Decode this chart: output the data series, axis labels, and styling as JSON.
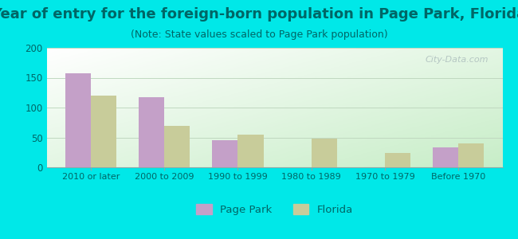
{
  "title": "Year of entry for the foreign-born population in Page Park, Florida",
  "subtitle": "(Note: State values scaled to Page Park population)",
  "categories": [
    "2010 or later",
    "2000 to 2009",
    "1990 to 1999",
    "1980 to 1989",
    "1970 to 1979",
    "Before 1970"
  ],
  "page_park_values": [
    158,
    118,
    46,
    0,
    0,
    33
  ],
  "florida_values": [
    120,
    70,
    55,
    48,
    24,
    40
  ],
  "page_park_color": "#c4a0c8",
  "florida_color": "#c8cc9a",
  "background_color": "#00e8e8",
  "plot_bg_top_left": "#f0faf0",
  "plot_bg_bottom_right": "#d8edd8",
  "ylim": [
    0,
    200
  ],
  "yticks": [
    0,
    50,
    100,
    150,
    200
  ],
  "title_fontsize": 13,
  "subtitle_fontsize": 9,
  "legend_label_park": "Page Park",
  "legend_label_florida": "Florida",
  "bar_width": 0.35,
  "watermark": "City-Data.com",
  "title_color": "#006666",
  "subtitle_color": "#006666",
  "tick_color": "#006666",
  "grid_color": "#c0d8c0"
}
